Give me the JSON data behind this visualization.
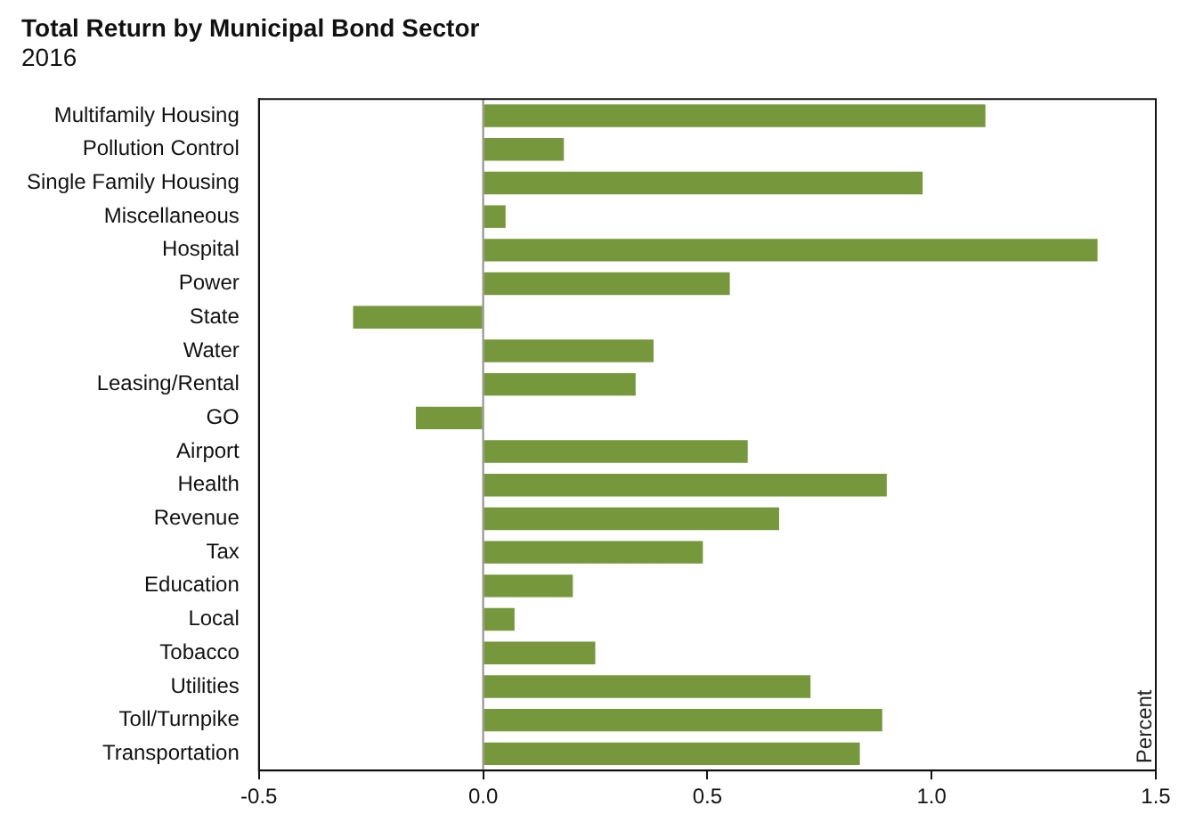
{
  "chart_data": {
    "type": "bar",
    "orientation": "horizontal",
    "title": "Total Return by Municipal Bond Sector",
    "subtitle": "2016",
    "annotations": [
      "Percent"
    ],
    "categories": [
      "Multifamily Housing",
      "Pollution Control",
      "Single Family Housing",
      "Miscellaneous",
      "Hospital",
      "Power",
      "State",
      "Water",
      "Leasing/Rental",
      "GO",
      "Airport",
      "Health",
      "Revenue",
      "Tax",
      "Education",
      "Local",
      "Tobacco",
      "Utilities",
      "Toll/Turnpike",
      "Transportation"
    ],
    "values": [
      1.12,
      0.18,
      0.98,
      0.05,
      1.37,
      0.55,
      -0.29,
      0.38,
      0.34,
      -0.15,
      0.59,
      0.9,
      0.66,
      0.49,
      0.2,
      0.07,
      0.25,
      0.73,
      0.89,
      0.84
    ],
    "color": "#76973b",
    "xlim": [
      -0.5,
      1.5
    ],
    "xticks": [
      {
        "value": -0.5,
        "label": "-0.5"
      },
      {
        "value": 0,
        "label": "0.0"
      },
      {
        "value": 0.5,
        "label": "0.5"
      },
      {
        "value": 1,
        "label": "1.0"
      },
      {
        "value": 1.5,
        "label": "1.5"
      }
    ],
    "grid": false,
    "ref_lines": [
      {
        "axis": "x",
        "value": 0,
        "color": "#8c8c8c"
      }
    ],
    "legend": false
  }
}
